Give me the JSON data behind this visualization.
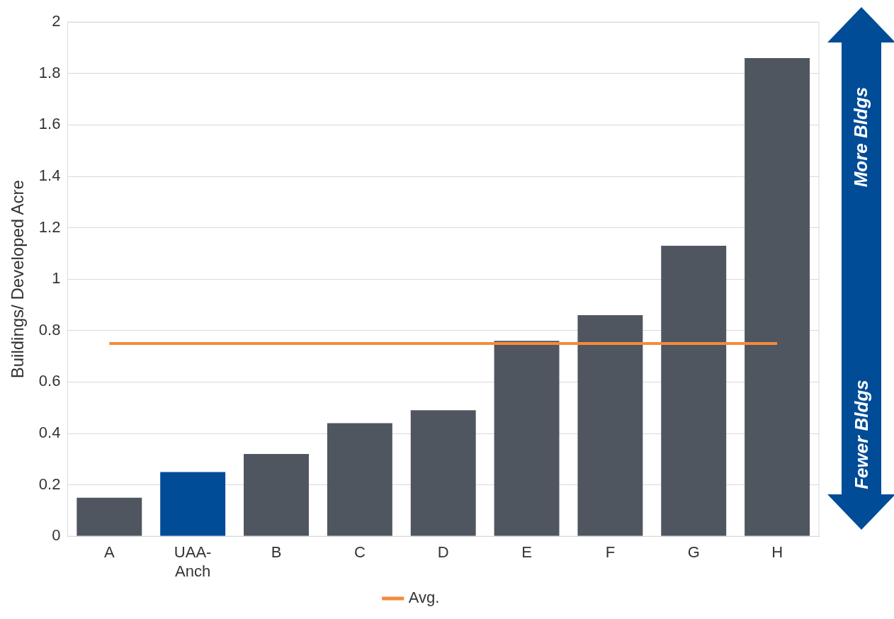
{
  "chart_data": {
    "type": "bar",
    "ylabel": "Buildings/ Developed Acre",
    "categories": [
      "A",
      "UAA-Anch",
      "B",
      "C",
      "D",
      "E",
      "F",
      "G",
      "H"
    ],
    "series": [
      {
        "colors": [
          "#4f5660",
          "#004c97",
          "#4f5660",
          "#4f5660",
          "#4f5660",
          "#4f5660",
          "#4f5660",
          "#4f5660",
          "#4f5660"
        ],
        "values": [
          0.15,
          0.25,
          0.32,
          0.44,
          0.49,
          0.76,
          0.86,
          1.13,
          1.86
        ]
      },
      {
        "type": "line",
        "name": "Avg.",
        "color": "#f58a3d",
        "values": [
          0.75,
          0.75,
          0.75,
          0.75,
          0.75,
          0.75,
          0.75,
          0.75,
          0.75
        ]
      }
    ],
    "ylim": [
      0,
      2
    ],
    "yticks": [
      0,
      0.2,
      0.4,
      0.6,
      0.8,
      1,
      1.2,
      1.4,
      1.6,
      1.8,
      2
    ],
    "grid": "y",
    "legend": "bottom",
    "marker": "none",
    "line_style": "solid",
    "annotations": [
      "More Bldgs",
      "Fewer Bldgs"
    ]
  }
}
